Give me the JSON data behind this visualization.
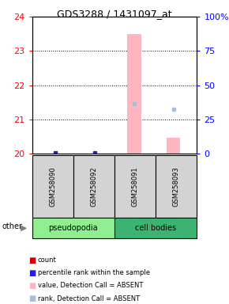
{
  "title": "GDS3288 / 1431097_at",
  "samples": [
    "GSM258090",
    "GSM258092",
    "GSM258091",
    "GSM258093"
  ],
  "ylim": [
    20,
    24
  ],
  "y_ticks": [
    20,
    21,
    22,
    23,
    24
  ],
  "y_right_ticks": [
    0,
    25,
    50,
    75,
    100
  ],
  "y_right_labels": [
    "0",
    "25",
    "50",
    "75",
    "100%"
  ],
  "bar_values": [
    null,
    null,
    23.5,
    20.45
  ],
  "bar_color": "#FFB6C1",
  "rank_dots": [
    20.02,
    20.02,
    21.45,
    21.3
  ],
  "rank_colors": [
    "#2222CC",
    "#2222CC",
    "#AABBDD",
    "#AABBDD"
  ],
  "dotted_lines": [
    21,
    22,
    23
  ],
  "x_positions": [
    0,
    1,
    2,
    3
  ],
  "bar_width": 0.35,
  "plot_bg": "#ffffff",
  "sample_box_color": "#D3D3D3",
  "pseudo_color": "#90EE90",
  "cell_color": "#3CB371",
  "legend_items": [
    {
      "label": "count",
      "color": "#CC0000"
    },
    {
      "label": "percentile rank within the sample",
      "color": "#2222CC"
    },
    {
      "label": "value, Detection Call = ABSENT",
      "color": "#FFB6C1"
    },
    {
      "label": "rank, Detection Call = ABSENT",
      "color": "#AABBDD"
    }
  ]
}
